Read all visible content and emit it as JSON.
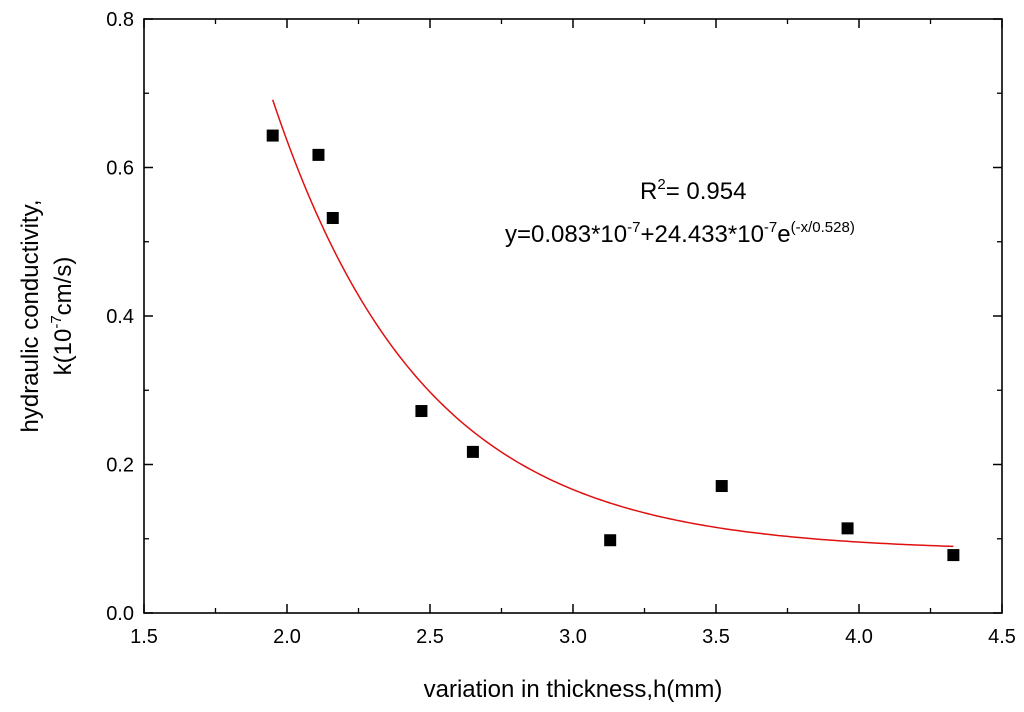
{
  "chart_data": {
    "type": "scatter",
    "title": "",
    "xlabel": "variation in thickness,h(mm)",
    "ylabel_line1": "hydraulic conductivity,",
    "ylabel_line2_prefix": "k(10",
    "ylabel_line2_exp": "-7",
    "ylabel_line2_suffix": "cm/s)",
    "xlim": [
      1.5,
      4.5
    ],
    "ylim": [
      0.0,
      0.8
    ],
    "xticks": [
      1.5,
      2.0,
      2.5,
      3.0,
      3.5,
      4.0,
      4.5
    ],
    "xtick_labels": [
      "1.5",
      "2.0",
      "2.5",
      "3.0",
      "3.5",
      "4.0",
      "4.5"
    ],
    "yticks": [
      0.0,
      0.2,
      0.4,
      0.6,
      0.8
    ],
    "ytick_labels": [
      "0.0",
      "0.2",
      "0.4",
      "0.6",
      "0.8"
    ],
    "grid": false,
    "points": [
      {
        "x": 1.95,
        "y": 0.643
      },
      {
        "x": 2.11,
        "y": 0.617
      },
      {
        "x": 2.16,
        "y": 0.532
      },
      {
        "x": 2.47,
        "y": 0.272
      },
      {
        "x": 2.65,
        "y": 0.217
      },
      {
        "x": 3.13,
        "y": 0.098
      },
      {
        "x": 3.52,
        "y": 0.171
      },
      {
        "x": 3.96,
        "y": 0.114
      },
      {
        "x": 4.33,
        "y": 0.078
      }
    ],
    "fit": {
      "name": "exponential decay fit",
      "color": "#e01010",
      "y0": 0.083,
      "A": 24.433,
      "t": 0.528,
      "x_range": [
        1.95,
        4.33
      ]
    },
    "marker_color": "#000000",
    "annotations": {
      "r2_label": "R",
      "r2_sup": "2",
      "r2_value": "=  0.954",
      "eq_part1": "y=0.083*10",
      "eq_sup1": "-7",
      "eq_part2": "+24.433*10",
      "eq_sup2": "-7",
      "eq_part3": "e",
      "eq_sup3": "(-x/0.528)"
    }
  }
}
